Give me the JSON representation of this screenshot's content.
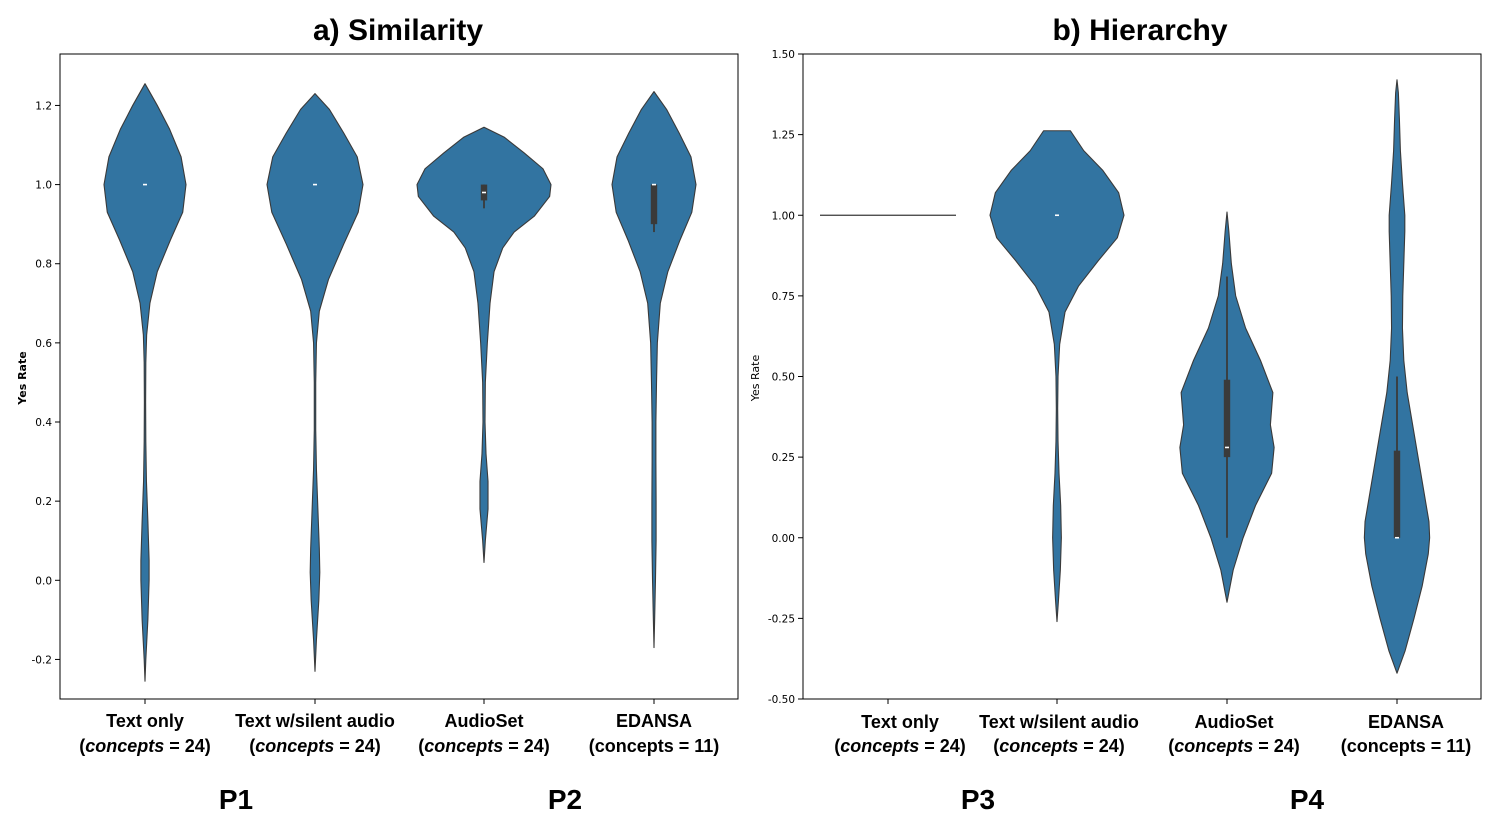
{
  "chart_data": [
    {
      "type": "violin",
      "title": "a) Similarity",
      "ylabel": "Yes Rate",
      "ylim": [
        -0.3,
        1.33
      ],
      "yticks": [
        "-0.2",
        "0.0",
        "0.2",
        "0.4",
        "0.6",
        "0.8",
        "1.0",
        "1.2"
      ],
      "ytick_values": [
        -0.2,
        0.0,
        0.2,
        0.4,
        0.6,
        0.8,
        1.0,
        1.2
      ],
      "color": "#3274a1",
      "categories": [
        {
          "name": "Text only",
          "concepts_prefix": "concepts",
          "concepts_suffix": " = 24",
          "italic": true,
          "median": 1.0,
          "q1": 1.0,
          "q3": 1.0,
          "whisker_low": 1.0,
          "whisker_high": 1.0,
          "profile": [
            [
              -0.255,
              0
            ],
            [
              -0.2,
              0.02
            ],
            [
              -0.1,
              0.07
            ],
            [
              0.0,
              0.1
            ],
            [
              0.05,
              0.1
            ],
            [
              0.15,
              0.07
            ],
            [
              0.25,
              0.035
            ],
            [
              0.35,
              0.02
            ],
            [
              0.45,
              0.015
            ],
            [
              0.55,
              0.02
            ],
            [
              0.62,
              0.04
            ],
            [
              0.7,
              0.12
            ],
            [
              0.78,
              0.3
            ],
            [
              0.86,
              0.62
            ],
            [
              0.93,
              0.92
            ],
            [
              1.0,
              1.0
            ],
            [
              1.07,
              0.88
            ],
            [
              1.14,
              0.6
            ],
            [
              1.2,
              0.3
            ],
            [
              1.255,
              0
            ]
          ]
        },
        {
          "name": "Text w/silent audio",
          "concepts_prefix": "concepts",
          "concepts_suffix": " = 24",
          "italic": true,
          "median": 1.0,
          "q1": 1.0,
          "q3": 1.0,
          "whisker_low": 1.0,
          "whisker_high": 1.0,
          "profile": [
            [
              -0.23,
              0
            ],
            [
              -0.15,
              0.03
            ],
            [
              -0.05,
              0.08
            ],
            [
              0.02,
              0.1
            ],
            [
              0.08,
              0.09
            ],
            [
              0.18,
              0.06
            ],
            [
              0.28,
              0.03
            ],
            [
              0.38,
              0.015
            ],
            [
              0.5,
              0.015
            ],
            [
              0.6,
              0.03
            ],
            [
              0.68,
              0.09
            ],
            [
              0.76,
              0.28
            ],
            [
              0.85,
              0.6
            ],
            [
              0.93,
              0.9
            ],
            [
              1.0,
              1.0
            ],
            [
              1.07,
              0.88
            ],
            [
              1.13,
              0.6
            ],
            [
              1.19,
              0.3
            ],
            [
              1.23,
              0
            ]
          ]
        },
        {
          "name": "AudioSet",
          "concepts_prefix": "concepts",
          "concepts_suffix": " = 24",
          "italic": true,
          "median": 0.98,
          "q1": 0.96,
          "q3": 1.0,
          "whisker_low": 0.94,
          "whisker_high": 1.0,
          "profile": [
            [
              0.045,
              0
            ],
            [
              0.1,
              0.02
            ],
            [
              0.18,
              0.06
            ],
            [
              0.25,
              0.06
            ],
            [
              0.32,
              0.03
            ],
            [
              0.4,
              0.015
            ],
            [
              0.5,
              0.02
            ],
            [
              0.6,
              0.05
            ],
            [
              0.7,
              0.09
            ],
            [
              0.78,
              0.15
            ],
            [
              0.84,
              0.28
            ],
            [
              0.88,
              0.45
            ],
            [
              0.92,
              0.75
            ],
            [
              0.97,
              0.98
            ],
            [
              1.0,
              1.0
            ],
            [
              1.04,
              0.88
            ],
            [
              1.08,
              0.6
            ],
            [
              1.12,
              0.3
            ],
            [
              1.145,
              0
            ]
          ]
        },
        {
          "name": "EDANSA",
          "concepts_prefix": "",
          "concepts_suffix": "concepts = 11",
          "italic": false,
          "median": 1.0,
          "q1": 0.9,
          "q3": 1.0,
          "whisker_low": 0.88,
          "whisker_high": 1.0,
          "profile": [
            [
              -0.17,
              0
            ],
            [
              -0.1,
              0.015
            ],
            [
              0.0,
              0.035
            ],
            [
              0.1,
              0.05
            ],
            [
              0.2,
              0.05
            ],
            [
              0.3,
              0.045
            ],
            [
              0.4,
              0.045
            ],
            [
              0.5,
              0.06
            ],
            [
              0.6,
              0.08
            ],
            [
              0.7,
              0.15
            ],
            [
              0.78,
              0.33
            ],
            [
              0.86,
              0.62
            ],
            [
              0.93,
              0.9
            ],
            [
              1.0,
              1.0
            ],
            [
              1.07,
              0.88
            ],
            [
              1.13,
              0.6
            ],
            [
              1.19,
              0.3
            ],
            [
              1.235,
              0
            ]
          ]
        }
      ]
    },
    {
      "type": "violin",
      "title": "b) Hierarchy",
      "ylabel": "Yes Rate",
      "ylim": [
        -0.5,
        1.5
      ],
      "yticks": [
        "-0.50",
        "-0.25",
        "0.00",
        "0.25",
        "0.50",
        "0.75",
        "1.00",
        "1.25",
        "1.50"
      ],
      "ytick_values": [
        -0.5,
        -0.25,
        0.0,
        0.25,
        0.5,
        0.75,
        1.0,
        1.25,
        1.5
      ],
      "color": "#3274a1",
      "categories": [
        {
          "name": "Text only",
          "concepts_prefix": "concepts",
          "concepts_suffix": " = 24",
          "italic": true,
          "degenerate_value": 1.0,
          "median": 1.0,
          "q1": 1.0,
          "q3": 1.0,
          "whisker_low": 1.0,
          "whisker_high": 1.0,
          "profile": []
        },
        {
          "name": "Text w/silent audio",
          "concepts_prefix": "concepts",
          "concepts_suffix": " = 24",
          "italic": true,
          "median": 1.0,
          "q1": 1.0,
          "q3": 1.0,
          "whisker_low": 1.0,
          "whisker_high": 1.0,
          "profile": [
            [
              -0.26,
              0
            ],
            [
              -0.2,
              0.02
            ],
            [
              -0.1,
              0.05
            ],
            [
              0.0,
              0.065
            ],
            [
              0.1,
              0.055
            ],
            [
              0.2,
              0.03
            ],
            [
              0.3,
              0.015
            ],
            [
              0.4,
              0.01
            ],
            [
              0.5,
              0.015
            ],
            [
              0.6,
              0.04
            ],
            [
              0.7,
              0.12
            ],
            [
              0.78,
              0.32
            ],
            [
              0.86,
              0.62
            ],
            [
              0.93,
              0.9
            ],
            [
              1.0,
              1.0
            ],
            [
              1.07,
              0.92
            ],
            [
              1.14,
              0.68
            ],
            [
              1.2,
              0.4
            ],
            [
              1.262,
              0.2
            ],
            [
              1.262,
              0
            ]
          ]
        },
        {
          "name": "AudioSet",
          "concepts_prefix": "concepts",
          "concepts_suffix": " = 24",
          "italic": true,
          "median": 0.28,
          "q1": 0.25,
          "q3": 0.49,
          "whisker_low": 0.0,
          "whisker_high": 0.81,
          "profile": [
            [
              -0.2,
              0
            ],
            [
              -0.1,
              0.05
            ],
            [
              0.0,
              0.13
            ],
            [
              0.1,
              0.23
            ],
            [
              0.2,
              0.36
            ],
            [
              0.28,
              0.38
            ],
            [
              0.35,
              0.35
            ],
            [
              0.45,
              0.37
            ],
            [
              0.55,
              0.27
            ],
            [
              0.65,
              0.15
            ],
            [
              0.75,
              0.07
            ],
            [
              0.85,
              0.035
            ],
            [
              0.95,
              0.015
            ],
            [
              1.01,
              0
            ]
          ]
        },
        {
          "name": "EDANSA",
          "concepts_prefix": "",
          "concepts_suffix": "concepts = 11",
          "italic": false,
          "median": 0.0,
          "q1": 0.0,
          "q3": 0.27,
          "whisker_low": 0.0,
          "whisker_high": 0.5,
          "profile": [
            [
              -0.42,
              0
            ],
            [
              -0.35,
              0.12
            ],
            [
              -0.25,
              0.25
            ],
            [
              -0.15,
              0.37
            ],
            [
              -0.05,
              0.46
            ],
            [
              0.0,
              0.48
            ],
            [
              0.05,
              0.47
            ],
            [
              0.15,
              0.39
            ],
            [
              0.25,
              0.31
            ],
            [
              0.35,
              0.23
            ],
            [
              0.45,
              0.15
            ],
            [
              0.55,
              0.1
            ],
            [
              0.65,
              0.08
            ],
            [
              0.75,
              0.085
            ],
            [
              0.85,
              0.1
            ],
            [
              0.95,
              0.115
            ],
            [
              1.0,
              0.115
            ],
            [
              1.1,
              0.08
            ],
            [
              1.2,
              0.05
            ],
            [
              1.3,
              0.035
            ],
            [
              1.38,
              0.02
            ],
            [
              1.42,
              0
            ]
          ]
        }
      ]
    }
  ],
  "panel_labels": [
    "P1",
    "P2",
    "P3",
    "P4"
  ]
}
